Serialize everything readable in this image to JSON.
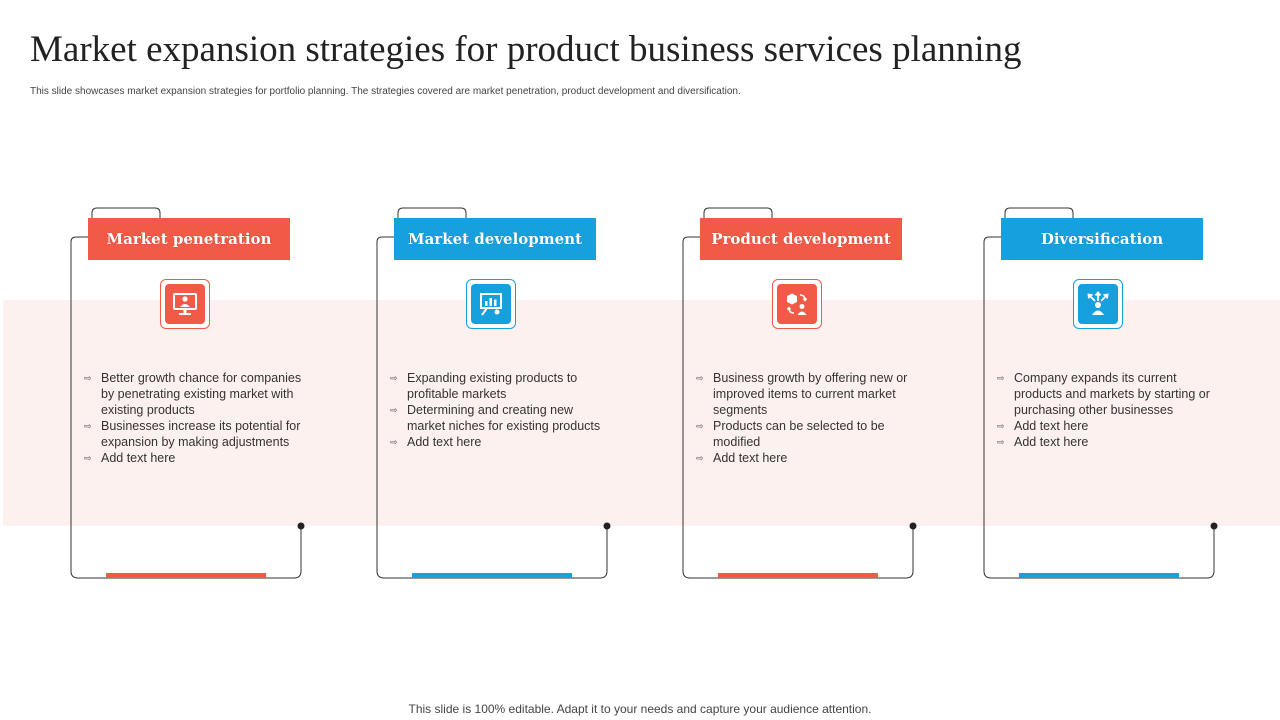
{
  "title": "Market expansion strategies for product business services planning",
  "subtitle": "This slide showcases market expansion strategies for portfolio planning. The strategies covered are market penetration, product development and diversification.",
  "footer": "This slide is 100% editable. Adapt it to your  needs and capture your audience attention.",
  "colors": {
    "red": "#f05a47",
    "blue": "#16a0de",
    "band": "#fdf1ef"
  },
  "cards": [
    {
      "title": "Market penetration",
      "color": "red",
      "icon": "presentation-user-icon",
      "bullets": [
        "Better growth chance for companies by penetrating existing market with existing products",
        "Businesses increase its potential for expansion by making adjustments",
        "Add text here"
      ]
    },
    {
      "title": "Market development",
      "color": "blue",
      "icon": "chart-board-icon",
      "bullets": [
        "Expanding existing products to profitable markets",
        "Determining and creating new market niches for existing products",
        "Add text here"
      ]
    },
    {
      "title": "Product development",
      "color": "red",
      "icon": "box-exchange-user-icon",
      "bullets": [
        "Business growth  by offering new or improved  items to current market segments",
        "Products can be selected to be modified",
        "Add text here"
      ]
    },
    {
      "title": "Diversification",
      "color": "blue",
      "icon": "person-arrows-icon",
      "bullets": [
        "Company expands its current products and markets by starting or purchasing other businesses",
        "Add text here",
        "Add text here"
      ]
    }
  ]
}
